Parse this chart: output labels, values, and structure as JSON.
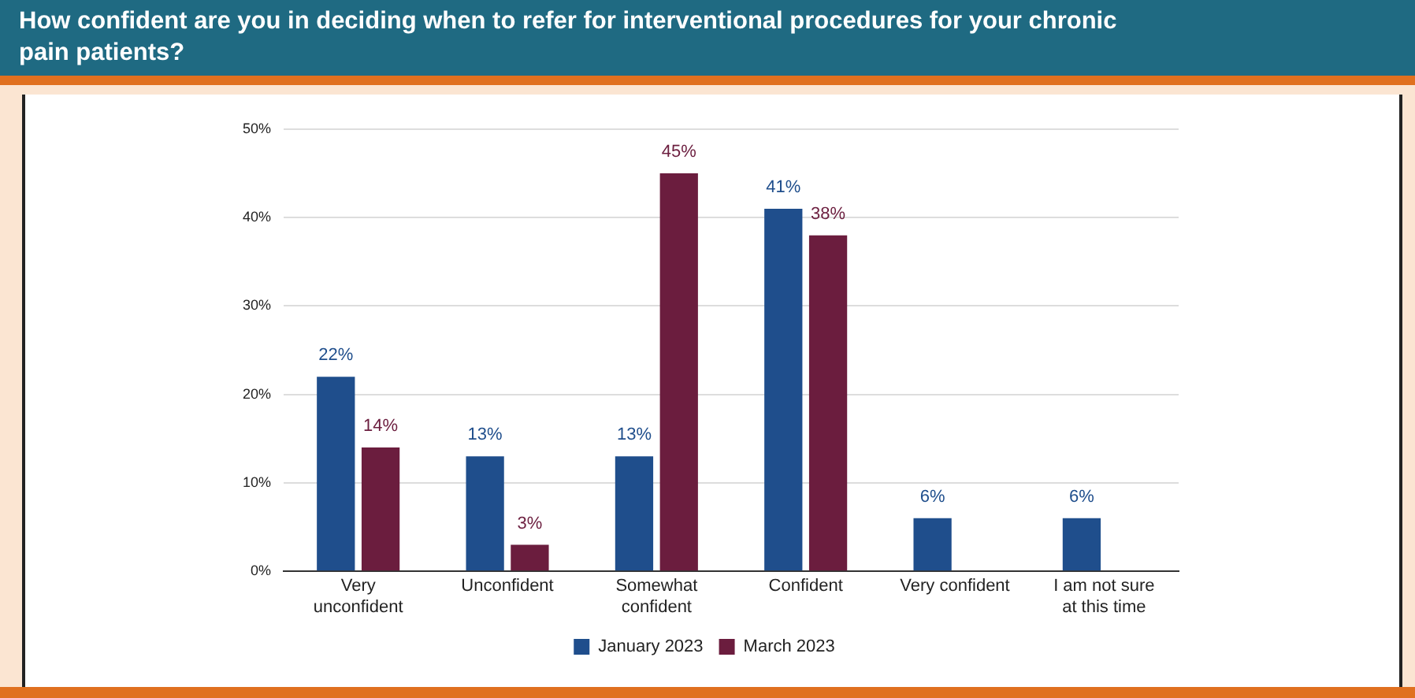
{
  "chart_data": {
    "type": "bar",
    "title": "How confident are you in deciding when to refer for interventional procedures for your chronic pain patients?",
    "categories": [
      "Very unconfident",
      "Unconfident",
      "Somewhat confident",
      "Confident",
      "Very confident",
      "I am not sure at this time"
    ],
    "series": [
      {
        "name": "January 2023",
        "color": "#1f4e8c",
        "values": [
          22,
          13,
          13,
          41,
          6,
          6
        ],
        "value_labels": [
          "22%",
          "13%",
          "13%",
          "41%",
          "6%",
          "6%"
        ]
      },
      {
        "name": "March 2023",
        "color": "#6b1d3e",
        "values": [
          14,
          3,
          45,
          38,
          null,
          null
        ],
        "value_labels": [
          "14%",
          "3%",
          "45%",
          "38%",
          null,
          null
        ]
      }
    ],
    "ylim": [
      0,
      50
    ],
    "yticks": [
      {
        "value": 0,
        "label": "0%"
      },
      {
        "value": 10,
        "label": "10%"
      },
      {
        "value": 20,
        "label": "20%"
      },
      {
        "value": 30,
        "label": "30%"
      },
      {
        "value": 40,
        "label": "40%"
      },
      {
        "value": 50,
        "label": "50%"
      }
    ],
    "grid": "y",
    "legend": "bottom"
  }
}
